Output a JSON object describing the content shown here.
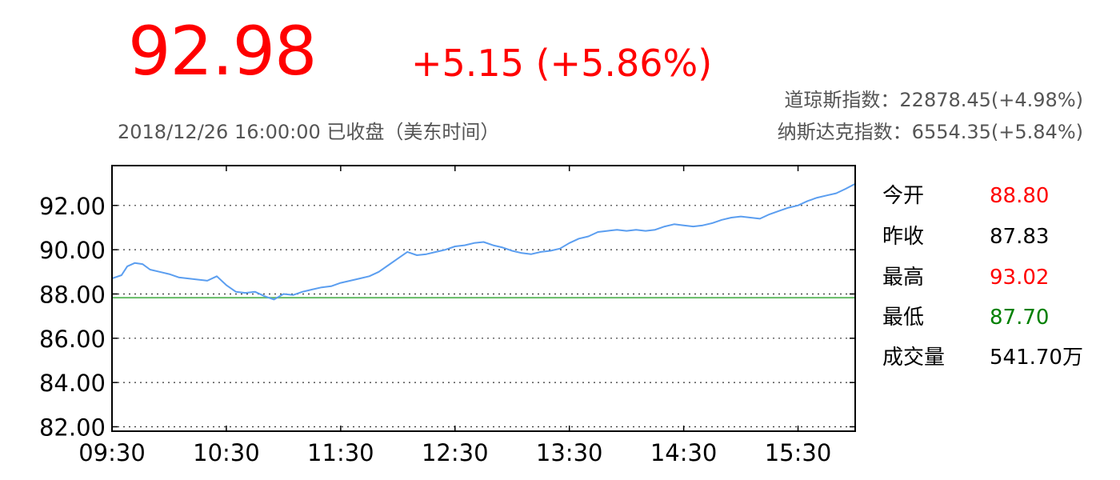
{
  "quote": {
    "price": "92.98",
    "change": "+5.15 (+5.86%)",
    "status": "2018/12/26 16:00:00 已收盘（美东时间）",
    "price_color": "#ff0000"
  },
  "indices": [
    {
      "label": "道琼斯指数：22878.45(+4.98%)"
    },
    {
      "label": "纳斯达克指数：6554.35(+5.84%)"
    }
  ],
  "stats": [
    {
      "label": "今开",
      "value": "88.80",
      "color": "#ff0000"
    },
    {
      "label": "昨收",
      "value": "87.83",
      "color": "#000000"
    },
    {
      "label": "最高",
      "value": "93.02",
      "color": "#ff0000"
    },
    {
      "label": "最低",
      "value": "87.70",
      "color": "#008000"
    },
    {
      "label": "成交量",
      "value": "541.70万",
      "color": "#000000"
    }
  ],
  "chart_data": {
    "type": "line",
    "x_ticks": [
      "09:30",
      "10:30",
      "11:30",
      "12:30",
      "13:30",
      "14:30",
      "15:30"
    ],
    "y_ticks": [
      "82.00",
      "84.00",
      "86.00",
      "88.00",
      "90.00",
      "92.00"
    ],
    "ylim": [
      81.8,
      93.8
    ],
    "xlim_minutes": [
      0,
      390
    ],
    "grid": "horizontal-dotted",
    "reference_line": {
      "value": 87.83,
      "color": "#66bb66"
    },
    "series": [
      {
        "color": "#5b9ef0",
        "points": [
          [
            0,
            88.7
          ],
          [
            5,
            88.85
          ],
          [
            8,
            89.25
          ],
          [
            12,
            89.4
          ],
          [
            16,
            89.35
          ],
          [
            20,
            89.1
          ],
          [
            25,
            89.0
          ],
          [
            30,
            88.9
          ],
          [
            35,
            88.75
          ],
          [
            40,
            88.7
          ],
          [
            45,
            88.65
          ],
          [
            50,
            88.6
          ],
          [
            55,
            88.8
          ],
          [
            60,
            88.4
          ],
          [
            65,
            88.1
          ],
          [
            70,
            88.05
          ],
          [
            75,
            88.1
          ],
          [
            80,
            87.9
          ],
          [
            85,
            87.75
          ],
          [
            90,
            88.0
          ],
          [
            95,
            87.95
          ],
          [
            100,
            88.1
          ],
          [
            105,
            88.2
          ],
          [
            110,
            88.3
          ],
          [
            115,
            88.35
          ],
          [
            120,
            88.5
          ],
          [
            125,
            88.6
          ],
          [
            130,
            88.7
          ],
          [
            135,
            88.8
          ],
          [
            140,
            89.0
          ],
          [
            145,
            89.3
          ],
          [
            150,
            89.6
          ],
          [
            155,
            89.9
          ],
          [
            160,
            89.75
          ],
          [
            165,
            89.8
          ],
          [
            170,
            89.9
          ],
          [
            175,
            90.0
          ],
          [
            180,
            90.15
          ],
          [
            185,
            90.2
          ],
          [
            190,
            90.3
          ],
          [
            195,
            90.35
          ],
          [
            200,
            90.2
          ],
          [
            205,
            90.1
          ],
          [
            210,
            89.95
          ],
          [
            215,
            89.85
          ],
          [
            220,
            89.8
          ],
          [
            225,
            89.9
          ],
          [
            230,
            89.95
          ],
          [
            235,
            90.05
          ],
          [
            240,
            90.3
          ],
          [
            245,
            90.5
          ],
          [
            250,
            90.6
          ],
          [
            255,
            90.8
          ],
          [
            260,
            90.85
          ],
          [
            265,
            90.9
          ],
          [
            270,
            90.85
          ],
          [
            275,
            90.9
          ],
          [
            280,
            90.85
          ],
          [
            285,
            90.9
          ],
          [
            290,
            91.05
          ],
          [
            295,
            91.15
          ],
          [
            300,
            91.1
          ],
          [
            305,
            91.05
          ],
          [
            310,
            91.1
          ],
          [
            315,
            91.2
          ],
          [
            320,
            91.35
          ],
          [
            325,
            91.45
          ],
          [
            330,
            91.5
          ],
          [
            335,
            91.45
          ],
          [
            340,
            91.4
          ],
          [
            345,
            91.6
          ],
          [
            350,
            91.75
          ],
          [
            355,
            91.9
          ],
          [
            360,
            92.0
          ],
          [
            365,
            92.2
          ],
          [
            370,
            92.35
          ],
          [
            375,
            92.45
          ],
          [
            380,
            92.55
          ],
          [
            385,
            92.75
          ],
          [
            390,
            92.98
          ]
        ]
      }
    ]
  }
}
